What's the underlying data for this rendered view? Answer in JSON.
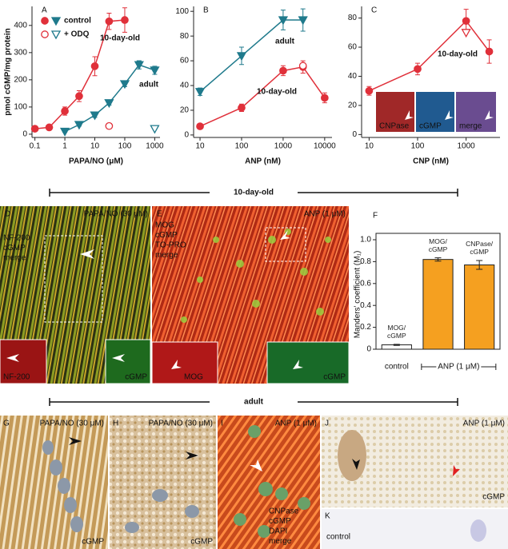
{
  "chart_data": [
    {
      "type": "line",
      "letter": "A",
      "xlabel": "PAPA/NO (μM)",
      "ylabel": "pmol cGMP/mg protein",
      "log_x": true,
      "xlim": [
        0.08,
        1500
      ],
      "xticks": [
        0.1,
        1,
        10,
        100,
        1000
      ],
      "ylim": [
        -12,
        470
      ],
      "yticks": [
        0,
        100,
        200,
        300,
        400
      ],
      "series": [
        {
          "name": "control",
          "color": "#e0303a",
          "marker": "circle",
          "filled": true,
          "x": [
            0.1,
            0.3,
            1,
            3,
            10,
            30,
            100
          ],
          "values": [
            20,
            25,
            85,
            140,
            250,
            415,
            420
          ],
          "errors": [
            3,
            5,
            15,
            20,
            35,
            30,
            45
          ]
        },
        {
          "color": "#1f7a8c",
          "marker": "triangle",
          "filled": true,
          "x": [
            1,
            3,
            10,
            30,
            100,
            300,
            1000
          ],
          "values": [
            10,
            35,
            70,
            115,
            185,
            255,
            235
          ],
          "errors": [
            3,
            5,
            8,
            8,
            10,
            15,
            15
          ]
        },
        {
          "name": "+ ODQ",
          "color": "#e0303a",
          "marker": "circle",
          "filled": false,
          "x": [
            30
          ],
          "values": [
            30
          ]
        },
        {
          "color": "#1f7a8c",
          "marker": "triangle",
          "filled": false,
          "x": [
            1000
          ],
          "values": [
            20
          ]
        }
      ],
      "annotations": [
        {
          "text": "10-day-old",
          "color": "#e0303a"
        },
        {
          "text": "adult",
          "color": "#1f7a8c"
        }
      ]
    },
    {
      "type": "line",
      "letter": "B",
      "xlabel": "ANP (nM)",
      "log_x": true,
      "xlim": [
        7,
        15000
      ],
      "xticks": [
        10,
        100,
        1000,
        10000
      ],
      "ylim": [
        -2,
        104
      ],
      "yticks": [
        0,
        20,
        40,
        60,
        80,
        100
      ],
      "series": [
        {
          "color": "#1f7a8c",
          "marker": "triangle",
          "filled": true,
          "x": [
            10,
            100,
            1000,
            3000
          ],
          "values": [
            35,
            64,
            93,
            93
          ],
          "errors": [
            3,
            7,
            8,
            9
          ]
        },
        {
          "color": "#e0303a",
          "marker": "circle",
          "filled": true,
          "x": [
            10,
            100,
            1000,
            3000,
            10000
          ],
          "values": [
            7,
            22,
            52,
            55,
            30
          ],
          "errors": [
            1,
            3,
            4,
            5,
            4
          ]
        },
        {
          "color": "#e0303a",
          "marker": "circle",
          "filled": false,
          "x": [
            3000
          ],
          "values": [
            56
          ]
        }
      ],
      "annotations": [
        {
          "text": "adult",
          "color": "#1f7a8c"
        },
        {
          "text": "10-day-old",
          "color": "#e0303a"
        }
      ]
    },
    {
      "type": "line",
      "letter": "C",
      "xlabel": "CNP (nM)",
      "log_x": true,
      "xlim": [
        7,
        5000
      ],
      "xticks": [
        10,
        100,
        1000
      ],
      "ylim": [
        -2,
        88
      ],
      "yticks": [
        0,
        20,
        40,
        60,
        80
      ],
      "series": [
        {
          "color": "#e0303a",
          "marker": "circle",
          "filled": true,
          "x": [
            10,
            100,
            1000,
            3000
          ],
          "values": [
            30,
            45,
            78,
            57
          ],
          "errors": [
            3,
            4,
            8,
            8
          ]
        },
        {
          "color": "#e0303a",
          "marker": "triangle",
          "filled": false,
          "x": [
            1000
          ],
          "values": [
            70
          ]
        }
      ],
      "annotations": [
        {
          "text": "10-day-old",
          "color": "#e0303a"
        }
      ],
      "inset_labels": [
        {
          "text": "CNPase",
          "color": "#ff3030"
        },
        {
          "text": "cGMP",
          "color": "#30e030"
        },
        {
          "text": "merge",
          "color": "#f0e040"
        }
      ]
    },
    {
      "type": "bar",
      "letter": "F",
      "ylabel": "Manders' coefficient (M₁)",
      "categories": [
        "MOG/ cGMP",
        "MOG/ cGMP",
        "CNPase/ cGMP"
      ],
      "values": [
        0.04,
        0.82,
        0.77
      ],
      "errors": [
        0.005,
        0.015,
        0.04
      ],
      "colors": [
        "#ffffff",
        "#f5a020",
        "#f5a020"
      ],
      "ylim": [
        0,
        1
      ],
      "yticks": [
        0,
        0.2,
        0.4,
        0.6,
        0.8,
        {
          "value": 1,
          "label": "1.0"
        }
      ],
      "groups": [
        "control",
        "ANP (1 μM)"
      ]
    }
  ],
  "sections": [
    "10-day-old",
    "adult"
  ],
  "micrographs": [
    {
      "letter": "D",
      "title": "PAPA/NO (30 μM)",
      "labels": [
        {
          "text": "NF-200",
          "color": "#ff3030"
        },
        {
          "text": "cGMP",
          "color": "#30e030"
        },
        {
          "text": "merge",
          "color": "#f0e040"
        }
      ],
      "insets": [
        {
          "text": "NF-200",
          "color": "#ff3030"
        },
        {
          "text": "cGMP",
          "color": "#30e030"
        }
      ]
    },
    {
      "letter": "E",
      "title": "ANP (1 μM)",
      "labels": [
        {
          "text": "MOG",
          "color": "#ff3030"
        },
        {
          "text": "cGMP",
          "color": "#30e030"
        },
        {
          "text": "TO-PRO",
          "color": "#4060ff"
        },
        {
          "text": "merge",
          "color": "#f0e040"
        }
      ],
      "insets": [
        {
          "text": "MOG",
          "color": "#ff3030"
        },
        {
          "text": "cGMP",
          "color": "#30e030"
        }
      ]
    },
    {
      "letter": "G",
      "title": "PAPA/NO (30 μM)",
      "insets": [
        {
          "text": "cGMP",
          "color": "#f8f0e0"
        }
      ]
    },
    {
      "letter": "H",
      "title": "PAPA/NO (30 μM)",
      "insets": [
        {
          "text": "cGMP",
          "color": "#f8f0e0"
        }
      ]
    },
    {
      "letter": "I",
      "title": "ANP (1 μM)",
      "labels": [
        {
          "text": "CNPase",
          "color": "#ff3030"
        },
        {
          "text": "cGMP",
          "color": "#30e030"
        },
        {
          "text": "DAPI",
          "color": "#4060ff"
        },
        {
          "text": "merge",
          "color": "#f0e040"
        }
      ]
    },
    {
      "letter": "J",
      "title": "ANP (1 μM)",
      "insets": [
        {
          "text": "cGMP",
          "color": "#9a7a50"
        }
      ]
    },
    {
      "letter": "K",
      "title": "control"
    }
  ]
}
